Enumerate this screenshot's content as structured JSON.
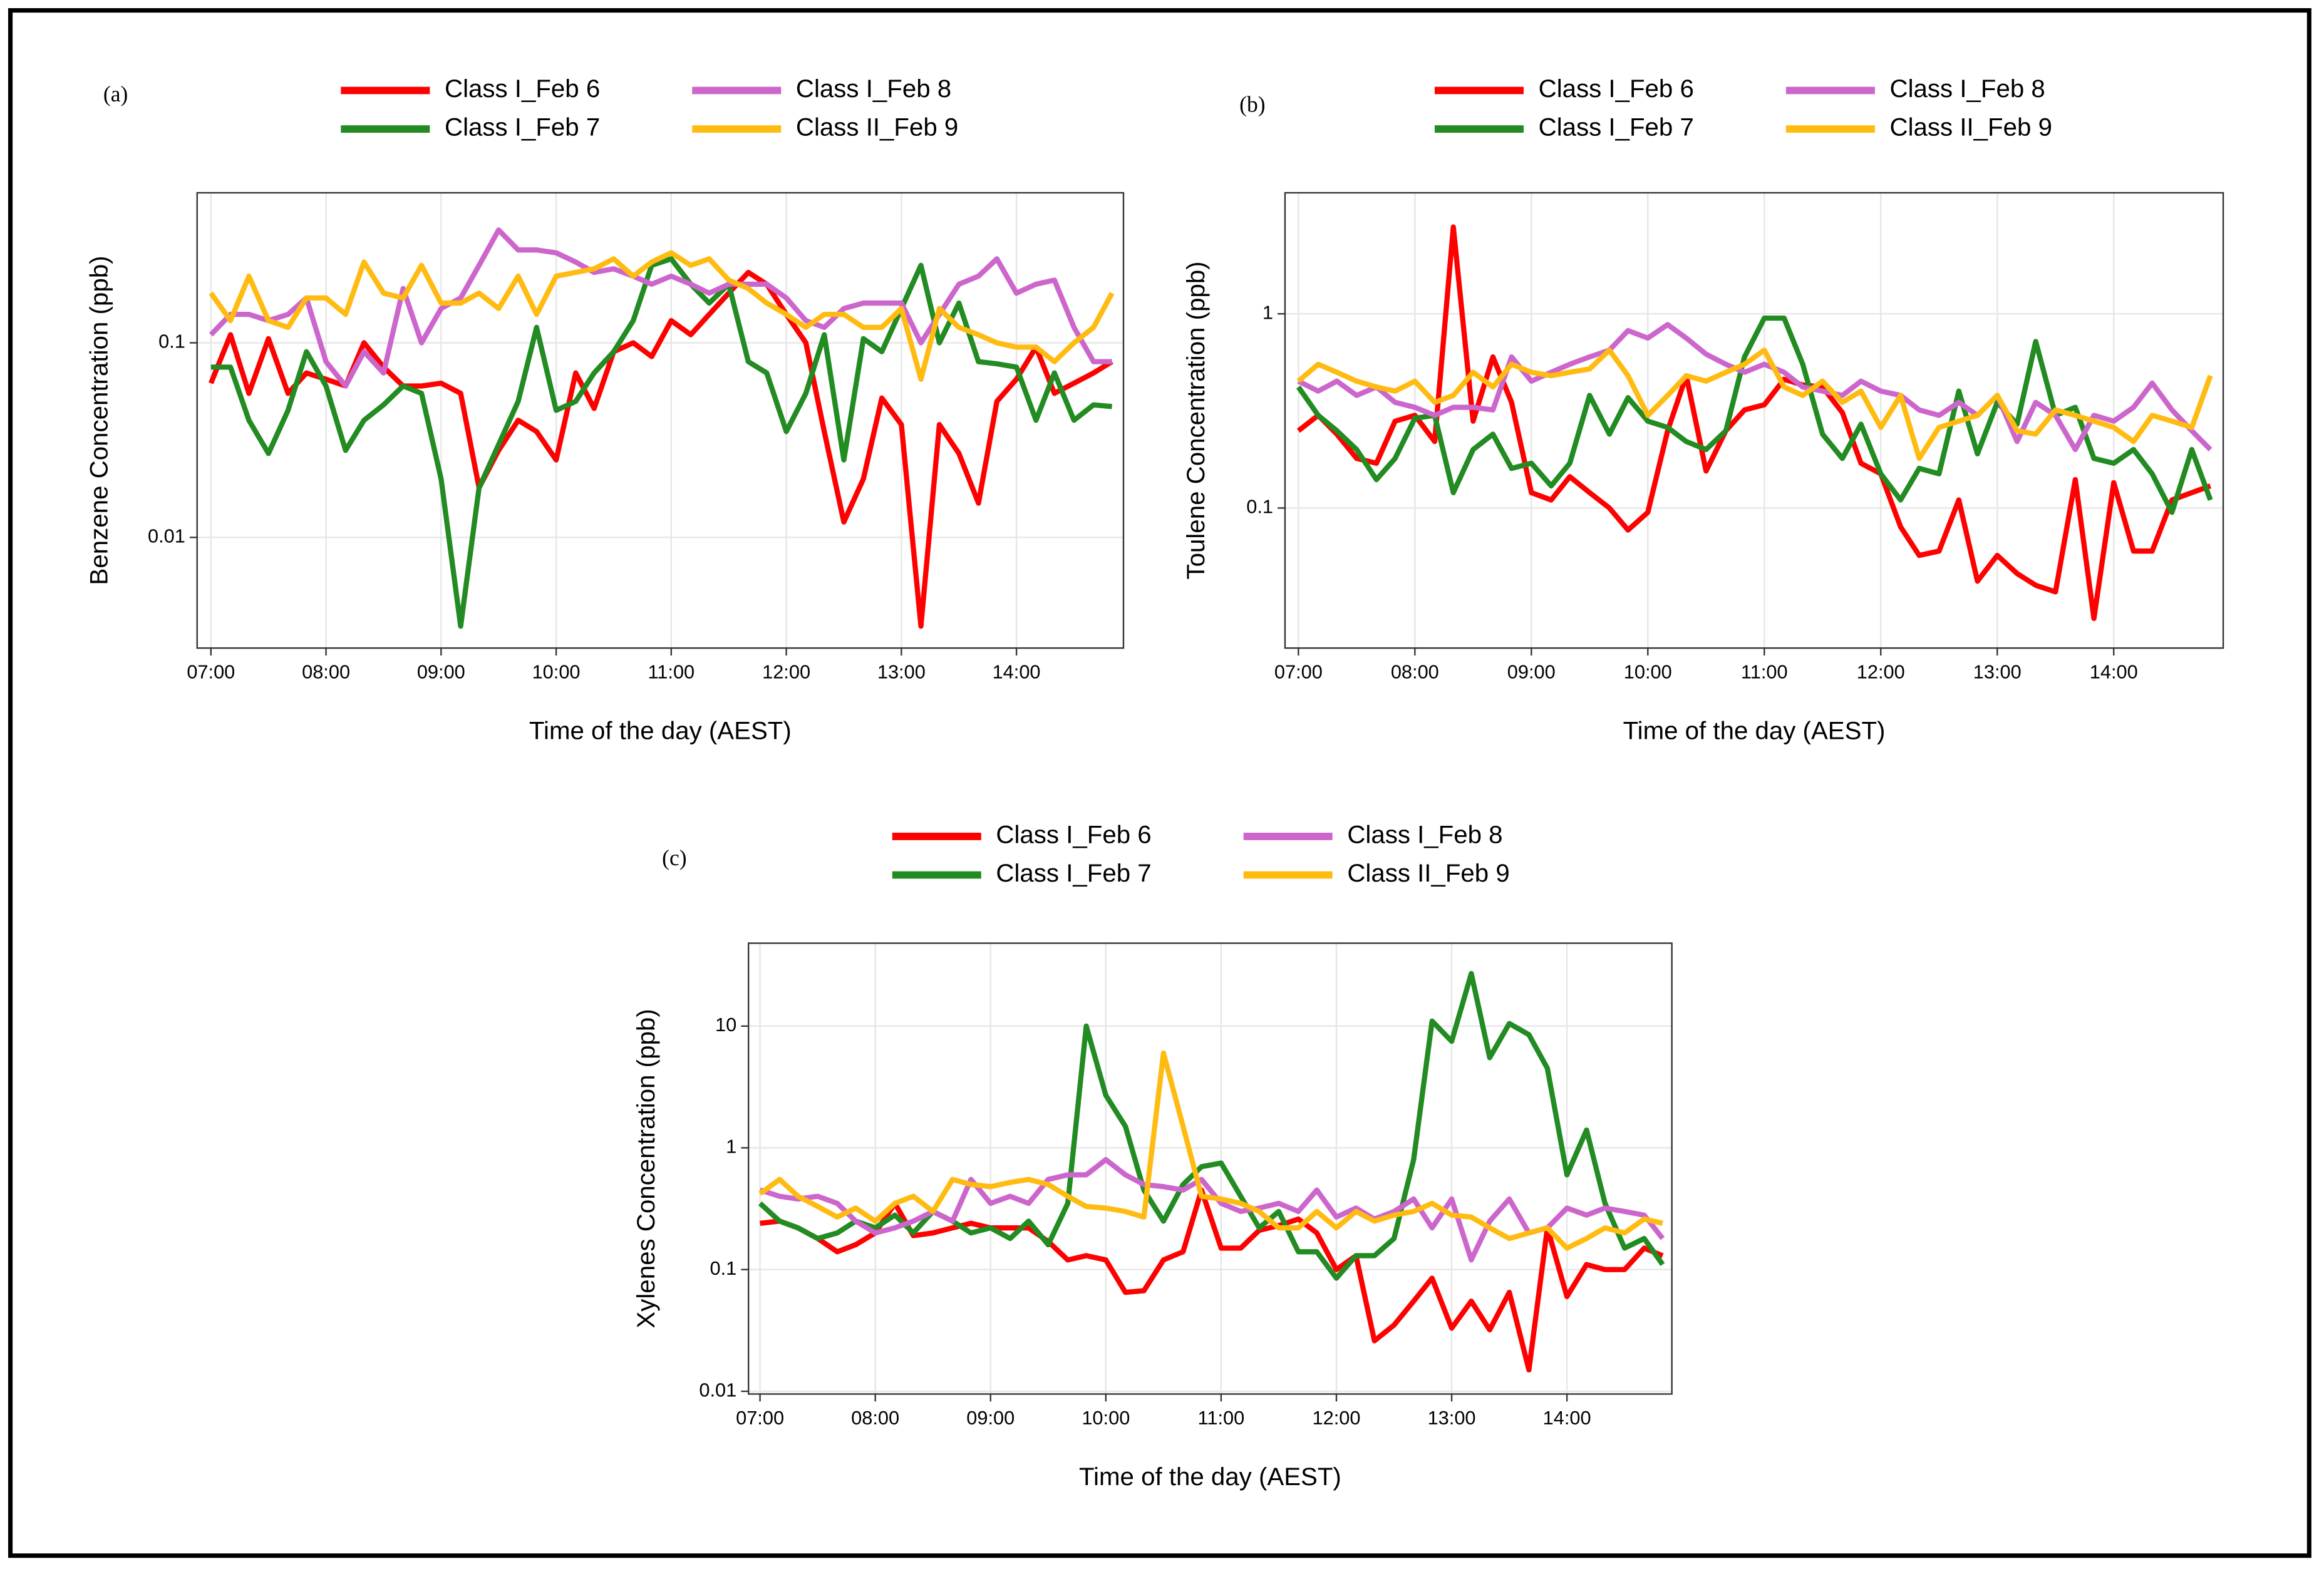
{
  "chart_data": [
    {
      "type": "line",
      "panel_label": "(a)",
      "x_label": "Time of the day (AEST)",
      "y_label": "Benzene Concentration (ppb)",
      "ylog": true,
      "grid": true,
      "legend": "top",
      "xlim": [
        6.88,
        14.93
      ],
      "ylim": [
        0.0027,
        0.59
      ],
      "xticks": [
        {
          "value": 7,
          "label": "07:00"
        },
        {
          "value": 8,
          "label": "08:00"
        },
        {
          "value": 9,
          "label": "09:00"
        },
        {
          "value": 10,
          "label": "10:00"
        },
        {
          "value": 11,
          "label": "11:00"
        },
        {
          "value": 12,
          "label": "12:00"
        },
        {
          "value": 13,
          "label": "13:00"
        },
        {
          "value": 14,
          "label": "14:00"
        }
      ],
      "yticks": [
        0.01,
        0.1
      ],
      "x": [
        7,
        7.17,
        7.33,
        7.5,
        7.67,
        7.83,
        8,
        8.17,
        8.33,
        8.5,
        8.67,
        8.83,
        9,
        9.17,
        9.33,
        9.5,
        9.67,
        9.83,
        10,
        10.17,
        10.33,
        10.5,
        10.67,
        10.83,
        11,
        11.17,
        11.33,
        11.5,
        11.67,
        11.83,
        12,
        12.17,
        12.33,
        12.5,
        12.67,
        12.83,
        13,
        13.17,
        13.33,
        13.5,
        13.67,
        13.83,
        14,
        14.17,
        14.33,
        14.5,
        14.67,
        14.83
      ],
      "series": [
        {
          "name": "Class I_Feb 6",
          "color": "#ff0000",
          "values": [
            0.062,
            0.11,
            0.055,
            0.105,
            0.055,
            0.07,
            0.065,
            0.06,
            0.1,
            0.075,
            0.06,
            0.06,
            0.062,
            0.055,
            0.018,
            0.028,
            0.04,
            0.035,
            0.025,
            0.07,
            0.046,
            0.09,
            0.1,
            0.085,
            0.13,
            0.11,
            0.14,
            0.18,
            0.23,
            0.2,
            0.14,
            0.1,
            0.035,
            0.012,
            0.02,
            0.052,
            0.038,
            0.0035,
            0.038,
            0.027,
            0.015,
            0.05,
            0.065,
            0.095,
            0.055,
            0.062,
            0.07,
            0.08
          ]
        },
        {
          "name": "Class I_Feb 7",
          "color": "#228b22",
          "values": [
            0.075,
            0.075,
            0.04,
            0.027,
            0.045,
            0.09,
            0.06,
            0.028,
            0.04,
            0.048,
            0.06,
            0.055,
            0.02,
            0.0035,
            0.018,
            0.03,
            0.05,
            0.12,
            0.045,
            0.05,
            0.07,
            0.09,
            0.13,
            0.25,
            0.27,
            0.2,
            0.16,
            0.2,
            0.08,
            0.07,
            0.035,
            0.055,
            0.11,
            0.025,
            0.105,
            0.09,
            0.15,
            0.25,
            0.1,
            0.16,
            0.08,
            0.078,
            0.075,
            0.04,
            0.07,
            0.04,
            0.048,
            0.047
          ]
        },
        {
          "name": "Class I_Feb 8",
          "color": "#cc66cc",
          "values": [
            0.11,
            0.14,
            0.14,
            0.13,
            0.14,
            0.17,
            0.08,
            0.06,
            0.09,
            0.07,
            0.19,
            0.1,
            0.15,
            0.17,
            0.25,
            0.38,
            0.3,
            0.3,
            0.29,
            0.26,
            0.23,
            0.24,
            0.22,
            0.2,
            0.22,
            0.2,
            0.18,
            0.2,
            0.2,
            0.2,
            0.17,
            0.13,
            0.12,
            0.15,
            0.16,
            0.16,
            0.16,
            0.1,
            0.14,
            0.2,
            0.22,
            0.27,
            0.18,
            0.2,
            0.21,
            0.12,
            0.08,
            0.08
          ]
        },
        {
          "name": "Class II_Feb 9",
          "color": "#ffbb11",
          "values": [
            0.18,
            0.13,
            0.22,
            0.13,
            0.12,
            0.17,
            0.17,
            0.14,
            0.26,
            0.18,
            0.17,
            0.25,
            0.16,
            0.16,
            0.18,
            0.15,
            0.22,
            0.14,
            0.22,
            0.23,
            0.24,
            0.27,
            0.22,
            0.26,
            0.29,
            0.25,
            0.27,
            0.21,
            0.19,
            0.16,
            0.14,
            0.12,
            0.14,
            0.14,
            0.12,
            0.12,
            0.15,
            0.065,
            0.15,
            0.12,
            0.11,
            0.1,
            0.095,
            0.095,
            0.08,
            0.1,
            0.12,
            0.18
          ]
        }
      ]
    },
    {
      "type": "line",
      "panel_label": "(b)",
      "x_label": "Time of the day (AEST)",
      "y_label": "Toulene Concentration (ppb)",
      "ylog": true,
      "grid": true,
      "legend": "top",
      "xlim": [
        6.885,
        14.94
      ],
      "ylim": [
        0.019,
        4.2
      ],
      "xticks": [
        {
          "value": 7,
          "label": "07:00"
        },
        {
          "value": 8,
          "label": "08:00"
        },
        {
          "value": 9,
          "label": "09:00"
        },
        {
          "value": 10,
          "label": "10:00"
        },
        {
          "value": 11,
          "label": "11:00"
        },
        {
          "value": 12,
          "label": "12:00"
        },
        {
          "value": 13,
          "label": "13:00"
        },
        {
          "value": 14,
          "label": "14:00"
        }
      ],
      "yticks": [
        0.1,
        1
      ],
      "x": [
        7,
        7.17,
        7.33,
        7.5,
        7.67,
        7.83,
        8,
        8.17,
        8.33,
        8.5,
        8.67,
        8.83,
        9,
        9.17,
        9.33,
        9.5,
        9.67,
        9.83,
        10,
        10.17,
        10.33,
        10.5,
        10.67,
        10.83,
        11,
        11.17,
        11.33,
        11.5,
        11.67,
        11.83,
        12,
        12.17,
        12.33,
        12.5,
        12.67,
        12.83,
        13,
        13.17,
        13.33,
        13.5,
        13.67,
        13.83,
        14,
        14.17,
        14.33,
        14.5,
        14.67,
        14.83
      ],
      "series": [
        {
          "name": "Class I_Feb 6",
          "color": "#ff0000",
          "values": [
            0.25,
            0.3,
            0.24,
            0.18,
            0.17,
            0.28,
            0.3,
            0.22,
            2.8,
            0.28,
            0.6,
            0.35,
            0.12,
            0.11,
            0.145,
            0.12,
            0.1,
            0.077,
            0.095,
            0.25,
            0.48,
            0.155,
            0.25,
            0.32,
            0.34,
            0.46,
            0.43,
            0.42,
            0.31,
            0.17,
            0.15,
            0.08,
            0.057,
            0.06,
            0.11,
            0.042,
            0.057,
            0.046,
            0.04,
            0.037,
            0.14,
            0.027,
            0.135,
            0.06,
            0.06,
            0.11,
            0.12,
            0.13
          ]
        },
        {
          "name": "Class I_Feb 7",
          "color": "#228b22",
          "values": [
            0.42,
            0.3,
            0.25,
            0.2,
            0.14,
            0.18,
            0.29,
            0.3,
            0.12,
            0.2,
            0.24,
            0.16,
            0.17,
            0.13,
            0.17,
            0.38,
            0.24,
            0.37,
            0.28,
            0.26,
            0.22,
            0.2,
            0.25,
            0.6,
            0.95,
            0.95,
            0.55,
            0.24,
            0.18,
            0.27,
            0.15,
            0.11,
            0.16,
            0.15,
            0.4,
            0.19,
            0.35,
            0.27,
            0.72,
            0.3,
            0.33,
            0.18,
            0.17,
            0.2,
            0.15,
            0.095,
            0.2,
            0.11
          ]
        },
        {
          "name": "Class I_Feb 8",
          "color": "#cc66cc",
          "values": [
            0.45,
            0.4,
            0.45,
            0.38,
            0.42,
            0.35,
            0.33,
            0.3,
            0.33,
            0.33,
            0.32,
            0.6,
            0.45,
            0.5,
            0.55,
            0.6,
            0.65,
            0.82,
            0.75,
            0.88,
            0.75,
            0.62,
            0.55,
            0.5,
            0.55,
            0.5,
            0.42,
            0.4,
            0.38,
            0.45,
            0.4,
            0.38,
            0.32,
            0.3,
            0.35,
            0.3,
            0.38,
            0.22,
            0.35,
            0.3,
            0.2,
            0.3,
            0.28,
            0.33,
            0.44,
            0.32,
            0.25,
            0.2
          ]
        },
        {
          "name": "Class II_Feb 9",
          "color": "#ffbb11",
          "values": [
            0.45,
            0.55,
            0.5,
            0.45,
            0.42,
            0.4,
            0.45,
            0.35,
            0.38,
            0.5,
            0.42,
            0.55,
            0.5,
            0.48,
            0.5,
            0.52,
            0.65,
            0.48,
            0.3,
            0.38,
            0.48,
            0.45,
            0.5,
            0.55,
            0.65,
            0.42,
            0.38,
            0.45,
            0.35,
            0.4,
            0.26,
            0.38,
            0.18,
            0.26,
            0.28,
            0.3,
            0.38,
            0.25,
            0.24,
            0.32,
            0.3,
            0.28,
            0.26,
            0.22,
            0.3,
            0.28,
            0.26,
            0.48
          ]
        }
      ]
    },
    {
      "type": "line",
      "panel_label": "(c)",
      "x_label": "Time of the day (AEST)",
      "y_label": "Xylenes Concentration (ppb)",
      "ylog": true,
      "grid": true,
      "legend": "top",
      "xlim": [
        6.9,
        14.91
      ],
      "ylim": [
        0.0095,
        48
      ],
      "xticks": [
        {
          "value": 7,
          "label": "07:00"
        },
        {
          "value": 8,
          "label": "08:00"
        },
        {
          "value": 9,
          "label": "09:00"
        },
        {
          "value": 10,
          "label": "10:00"
        },
        {
          "value": 11,
          "label": "11:00"
        },
        {
          "value": 12,
          "label": "12:00"
        },
        {
          "value": 13,
          "label": "13:00"
        },
        {
          "value": 14,
          "label": "14:00"
        }
      ],
      "yticks": [
        0.01,
        0.1,
        1,
        10
      ],
      "x": [
        7,
        7.17,
        7.33,
        7.5,
        7.67,
        7.83,
        8,
        8.17,
        8.33,
        8.5,
        8.67,
        8.83,
        9,
        9.17,
        9.33,
        9.5,
        9.67,
        9.83,
        10,
        10.17,
        10.33,
        10.5,
        10.67,
        10.83,
        11,
        11.17,
        11.33,
        11.5,
        11.67,
        11.83,
        12,
        12.17,
        12.33,
        12.5,
        12.67,
        12.83,
        13,
        13.17,
        13.33,
        13.5,
        13.67,
        13.83,
        14,
        14.17,
        14.33,
        14.5,
        14.67,
        14.83
      ],
      "series": [
        {
          "name": "Class I_Feb 6",
          "color": "#ff0000",
          "values": [
            0.24,
            0.25,
            0.22,
            0.18,
            0.14,
            0.16,
            0.2,
            0.35,
            0.19,
            0.2,
            0.22,
            0.24,
            0.22,
            0.22,
            0.22,
            0.17,
            0.12,
            0.13,
            0.12,
            0.065,
            0.067,
            0.12,
            0.14,
            0.45,
            0.15,
            0.15,
            0.21,
            0.23,
            0.26,
            0.2,
            0.1,
            0.13,
            0.026,
            0.035,
            0.055,
            0.085,
            0.033,
            0.055,
            0.032,
            0.065,
            0.015,
            0.22,
            0.06,
            0.11,
            0.1,
            0.1,
            0.15,
            0.13
          ]
        },
        {
          "name": "Class I_Feb 7",
          "color": "#228b22",
          "values": [
            0.35,
            0.25,
            0.22,
            0.18,
            0.2,
            0.25,
            0.22,
            0.28,
            0.2,
            0.3,
            0.25,
            0.2,
            0.22,
            0.18,
            0.25,
            0.16,
            0.35,
            10,
            2.7,
            1.5,
            0.45,
            0.25,
            0.5,
            0.7,
            0.75,
            0.4,
            0.22,
            0.3,
            0.14,
            0.14,
            0.085,
            0.13,
            0.13,
            0.18,
            0.8,
            11,
            7.5,
            27,
            5.5,
            10.5,
            8.5,
            4.5,
            0.6,
            1.4,
            0.35,
            0.15,
            0.18,
            0.11
          ]
        },
        {
          "name": "Class I_Feb 8",
          "color": "#cc66cc",
          "values": [
            0.45,
            0.4,
            0.38,
            0.4,
            0.35,
            0.25,
            0.2,
            0.22,
            0.25,
            0.3,
            0.25,
            0.55,
            0.35,
            0.4,
            0.35,
            0.55,
            0.6,
            0.6,
            0.8,
            0.6,
            0.5,
            0.48,
            0.45,
            0.55,
            0.35,
            0.3,
            0.32,
            0.35,
            0.3,
            0.45,
            0.27,
            0.32,
            0.26,
            0.3,
            0.38,
            0.22,
            0.38,
            0.12,
            0.25,
            0.38,
            0.2,
            0.22,
            0.32,
            0.28,
            0.32,
            0.3,
            0.28,
            0.18
          ]
        },
        {
          "name": "Class II_Feb 9",
          "color": "#ffbb11",
          "values": [
            0.42,
            0.55,
            0.4,
            0.33,
            0.27,
            0.32,
            0.25,
            0.35,
            0.4,
            0.3,
            0.55,
            0.5,
            0.48,
            0.52,
            0.55,
            0.5,
            0.4,
            0.33,
            0.32,
            0.3,
            0.27,
            6,
            1.5,
            0.4,
            0.38,
            0.35,
            0.3,
            0.22,
            0.22,
            0.3,
            0.22,
            0.3,
            0.25,
            0.28,
            0.3,
            0.35,
            0.28,
            0.27,
            0.22,
            0.18,
            0.2,
            0.22,
            0.15,
            0.18,
            0.22,
            0.2,
            0.26,
            0.24
          ]
        }
      ]
    }
  ]
}
